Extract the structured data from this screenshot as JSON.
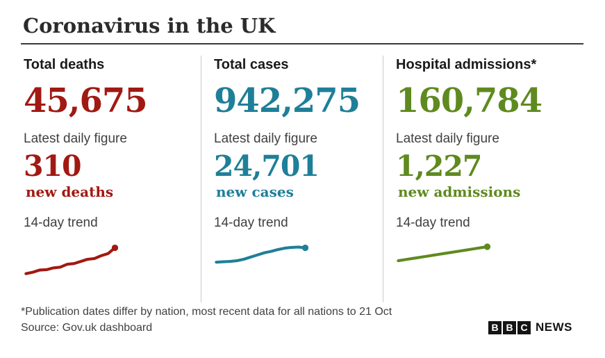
{
  "page": {
    "title": "Coronavirus in the UK"
  },
  "colors": {
    "deaths_red": "#a11912",
    "cases_teal": "#1f7f98",
    "admissions_green": "#5f8a1f",
    "heading_text": "#1a1a1a",
    "body_gray": "#404040",
    "divider_gray": "#c9c9c9",
    "rule_dark": "#3a3a3a"
  },
  "columns": [
    {
      "header": "Total deaths",
      "total": "45,675",
      "daily_label": "Latest daily figure",
      "daily_value": "310",
      "daily_unit": "new deaths",
      "trend_label": "14-day trend",
      "color": "#a11912"
    },
    {
      "header": "Total cases",
      "total": "942,275",
      "daily_label": "Latest daily figure",
      "daily_value": "24,701",
      "daily_unit": "new cases",
      "trend_label": "14-day trend",
      "color": "#1f7f98"
    },
    {
      "header": "Hospital admissions*",
      "total": "160,784",
      "daily_label": "Latest daily figure",
      "daily_value": "1,227",
      "daily_unit": "new admissions",
      "trend_label": "14-day trend",
      "color": "#5f8a1f"
    }
  ],
  "chart_data": [
    {
      "type": "line",
      "title": "Total deaths 14-day trend",
      "color": "#a11912",
      "series": [
        {
          "name": "new deaths",
          "values": [
            10,
            12,
            15,
            15.5,
            18,
            19,
            23,
            24,
            27,
            30,
            31,
            35,
            38,
            46
          ]
        }
      ],
      "xlabel": "",
      "ylabel": "",
      "axes_hidden": true,
      "note": "unlabeled sparkline, 14 daily points, relative scale, rising trend, endpoint marked with dot"
    },
    {
      "type": "line",
      "title": "Total cases 14-day trend",
      "color": "#1f7f98",
      "series": [
        {
          "name": "new cases",
          "values": [
            26,
            26.5,
            27,
            28,
            30,
            33,
            36,
            39,
            41,
            43.5,
            45.5,
            46.5,
            47,
            46
          ]
        }
      ],
      "xlabel": "",
      "ylabel": "",
      "axes_hidden": true,
      "note": "unlabeled sparkline, 14 daily points, relative scale, gentle rise flattening at end, endpoint marked with dot"
    },
    {
      "type": "line",
      "title": "Hospital admissions 14-day trend",
      "color": "#5f8a1f",
      "series": [
        {
          "name": "new admissions",
          "values": [
            28,
            29.5,
            31,
            32.5,
            34,
            35.5,
            37,
            38.5,
            40,
            41.5,
            43,
            44.5,
            46,
            47.5
          ]
        }
      ],
      "xlabel": "",
      "ylabel": "",
      "axes_hidden": true,
      "note": "unlabeled sparkline, 14 daily points, relative scale, near-straight rise, endpoint marked with dot"
    }
  ],
  "footer": {
    "note": "*Publication dates differ by nation, most recent data for all nations to 21 Oct",
    "source": "Source: Gov.uk dashboard",
    "logo": {
      "blocks": [
        "B",
        "B",
        "C"
      ],
      "text": "NEWS"
    }
  }
}
